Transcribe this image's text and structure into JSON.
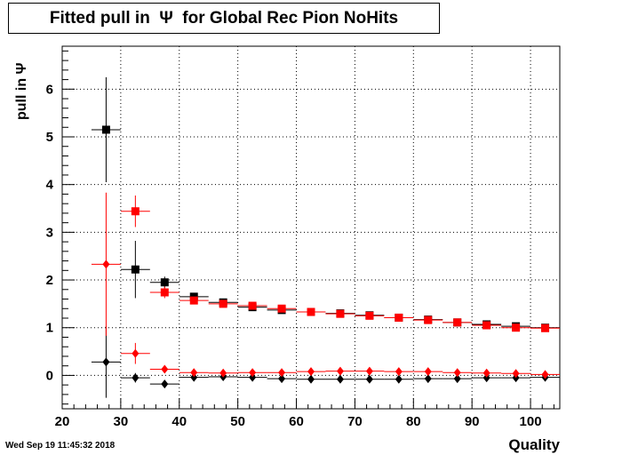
{
  "title": "Fitted pull in  Ψ  for Global Rec Pion NoHits",
  "timestamp": "Wed Sep 19 11:45:32 2018",
  "chart_data": {
    "type": "scatter",
    "title": "Fitted pull in  Ψ  for Global Rec Pion NoHits",
    "xlabel": "Quality",
    "ylabel": "pull in  Ψ",
    "xlim": [
      20,
      105
    ],
    "ylim": [
      -0.7,
      6.9
    ],
    "xticks": [
      "20",
      "30",
      "40",
      "50",
      "60",
      "70",
      "80",
      "90",
      "100"
    ],
    "yticks": [
      "0",
      "1",
      "2",
      "3",
      "4",
      "5",
      "6"
    ],
    "grid": true,
    "series": [
      {
        "marker": "square",
        "color": "#000000",
        "x": [
          27.5,
          32.5,
          37.5,
          42.5,
          47.5,
          52.5,
          57.5,
          62.5,
          67.5,
          72.5,
          77.5,
          82.5,
          87.5,
          92.5,
          97.5,
          102.5
        ],
        "y": [
          5.15,
          2.22,
          1.95,
          1.65,
          1.53,
          1.43,
          1.37,
          1.33,
          1.3,
          1.26,
          1.21,
          1.17,
          1.11,
          1.07,
          1.03,
          1.0
        ],
        "yerr": [
          1.1,
          0.6,
          0.12,
          0.07,
          0.05,
          0.04,
          0.04,
          0.03,
          0.03,
          0.03,
          0.03,
          0.03,
          0.03,
          0.03,
          0.03,
          0.03
        ]
      },
      {
        "marker": "square",
        "color": "#ff0000",
        "x": [
          32.5,
          37.5,
          42.5,
          47.5,
          52.5,
          57.5,
          62.5,
          67.5,
          72.5,
          77.5,
          82.5,
          87.5,
          92.5,
          97.5,
          102.5
        ],
        "y": [
          3.44,
          1.74,
          1.57,
          1.5,
          1.46,
          1.4,
          1.33,
          1.29,
          1.25,
          1.21,
          1.16,
          1.11,
          1.05,
          1.0,
          0.99
        ],
        "yerr": [
          0.33,
          0.12,
          0.07,
          0.05,
          0.04,
          0.04,
          0.03,
          0.03,
          0.03,
          0.03,
          0.03,
          0.03,
          0.03,
          0.03,
          0.03
        ]
      },
      {
        "marker": "diamond",
        "color": "#000000",
        "x": [
          27.5,
          32.5,
          37.5,
          42.5,
          47.5,
          52.5,
          57.5,
          62.5,
          67.5,
          72.5,
          77.5,
          82.5,
          87.5,
          92.5,
          97.5,
          102.5
        ],
        "y": [
          0.28,
          -0.05,
          -0.18,
          -0.04,
          -0.03,
          -0.04,
          -0.07,
          -0.08,
          -0.08,
          -0.08,
          -0.08,
          -0.07,
          -0.07,
          -0.05,
          -0.05,
          -0.04
        ],
        "yerr": [
          0.75,
          0.1,
          0.04,
          0.03,
          0.02,
          0.02,
          0.02,
          0.02,
          0.02,
          0.02,
          0.02,
          0.02,
          0.02,
          0.02,
          0.02,
          0.02
        ]
      },
      {
        "marker": "diamond",
        "color": "#ff0000",
        "x": [
          27.5,
          32.5,
          37.5,
          42.5,
          47.5,
          52.5,
          57.5,
          62.5,
          67.5,
          72.5,
          77.5,
          82.5,
          87.5,
          92.5,
          97.5,
          102.5
        ],
        "y": [
          2.33,
          0.46,
          0.13,
          0.06,
          0.05,
          0.06,
          0.06,
          0.08,
          0.09,
          0.09,
          0.08,
          0.08,
          0.06,
          0.05,
          0.04,
          0.02
        ],
        "yerr": [
          1.5,
          0.22,
          0.05,
          0.03,
          0.03,
          0.02,
          0.02,
          0.02,
          0.02,
          0.02,
          0.02,
          0.02,
          0.02,
          0.02,
          0.02,
          0.02
        ]
      }
    ]
  }
}
